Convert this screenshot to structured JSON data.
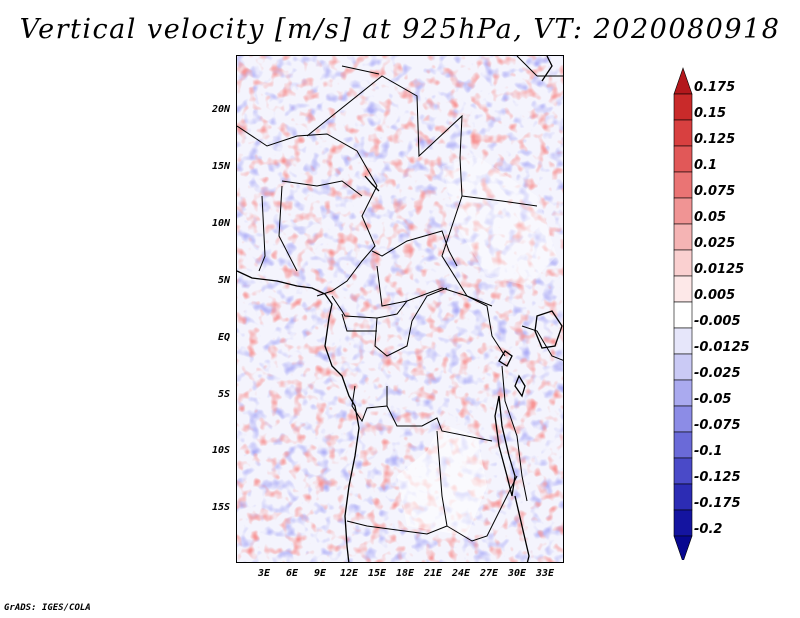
{
  "title": "Vertical velocity [m/s] at 925hPa, VT: 2020080918",
  "credit": "GrADS: IGES/COLA",
  "map": {
    "lon_labels": [
      "3E",
      "6E",
      "9E",
      "12E",
      "15E",
      "18E",
      "21E",
      "24E",
      "27E",
      "30E",
      "33E"
    ],
    "lat_labels": [
      "20N",
      "15N",
      "10N",
      "5N",
      "EQ",
      "5S",
      "10S",
      "15S"
    ]
  },
  "colorbar": {
    "labels": [
      "0.175",
      "0.15",
      "0.125",
      "0.1",
      "0.075",
      "0.05",
      "0.025",
      "0.0125",
      "0.005",
      "-0.005",
      "-0.0125",
      "-0.025",
      "-0.05",
      "-0.075",
      "-0.1",
      "-0.125",
      "-0.175",
      "-0.2"
    ],
    "colors": [
      "#b3181c",
      "#c92a2a",
      "#d84040",
      "#e15858",
      "#ea7474",
      "#f09494",
      "#f5b4b4",
      "#fad0d0",
      "#fde8e8",
      "#ffffff",
      "#e6e6fa",
      "#cacaf5",
      "#aaaaef",
      "#8c8ce6",
      "#6a6ad8",
      "#4a4ac8",
      "#2c2cb4",
      "#1414a0",
      "#080890"
    ]
  }
}
